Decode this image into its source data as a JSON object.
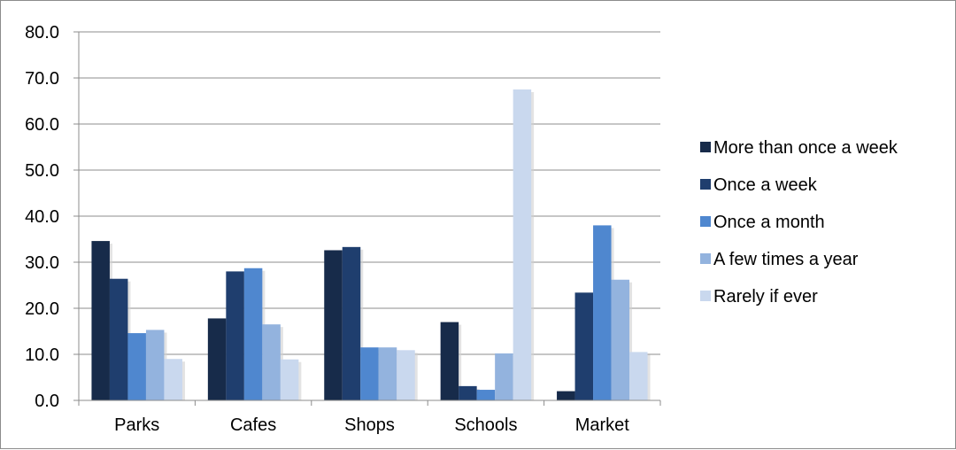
{
  "chart_data": {
    "type": "bar",
    "categories": [
      "Parks",
      "Cafes",
      "Shops",
      "Schools",
      "Market"
    ],
    "series": [
      {
        "name": "More than once a week",
        "color": "#172b4a",
        "values": [
          34.6,
          17.8,
          32.6,
          17.0,
          2.0
        ]
      },
      {
        "name": "Once a week",
        "color": "#1f3e6e",
        "values": [
          26.4,
          28.0,
          33.3,
          3.1,
          23.4
        ]
      },
      {
        "name": "Once a month",
        "color": "#4f87cf",
        "values": [
          14.6,
          28.7,
          11.5,
          2.3,
          38.0
        ]
      },
      {
        "name": "A few times a year",
        "color": "#93b3de",
        "values": [
          15.3,
          16.5,
          11.5,
          10.2,
          26.2
        ]
      },
      {
        "name": "Rarely if ever",
        "color": "#c9d8ee",
        "values": [
          9.0,
          8.9,
          10.9,
          67.5,
          10.5
        ]
      }
    ],
    "ylim": [
      0,
      80
    ],
    "yticks": [
      "0.0",
      "10.0",
      "20.0",
      "30.0",
      "40.0",
      "50.0",
      "60.0",
      "70.0",
      "80.0"
    ],
    "grid": true,
    "legend": "right",
    "title": "",
    "xlabel": "",
    "ylabel": ""
  }
}
